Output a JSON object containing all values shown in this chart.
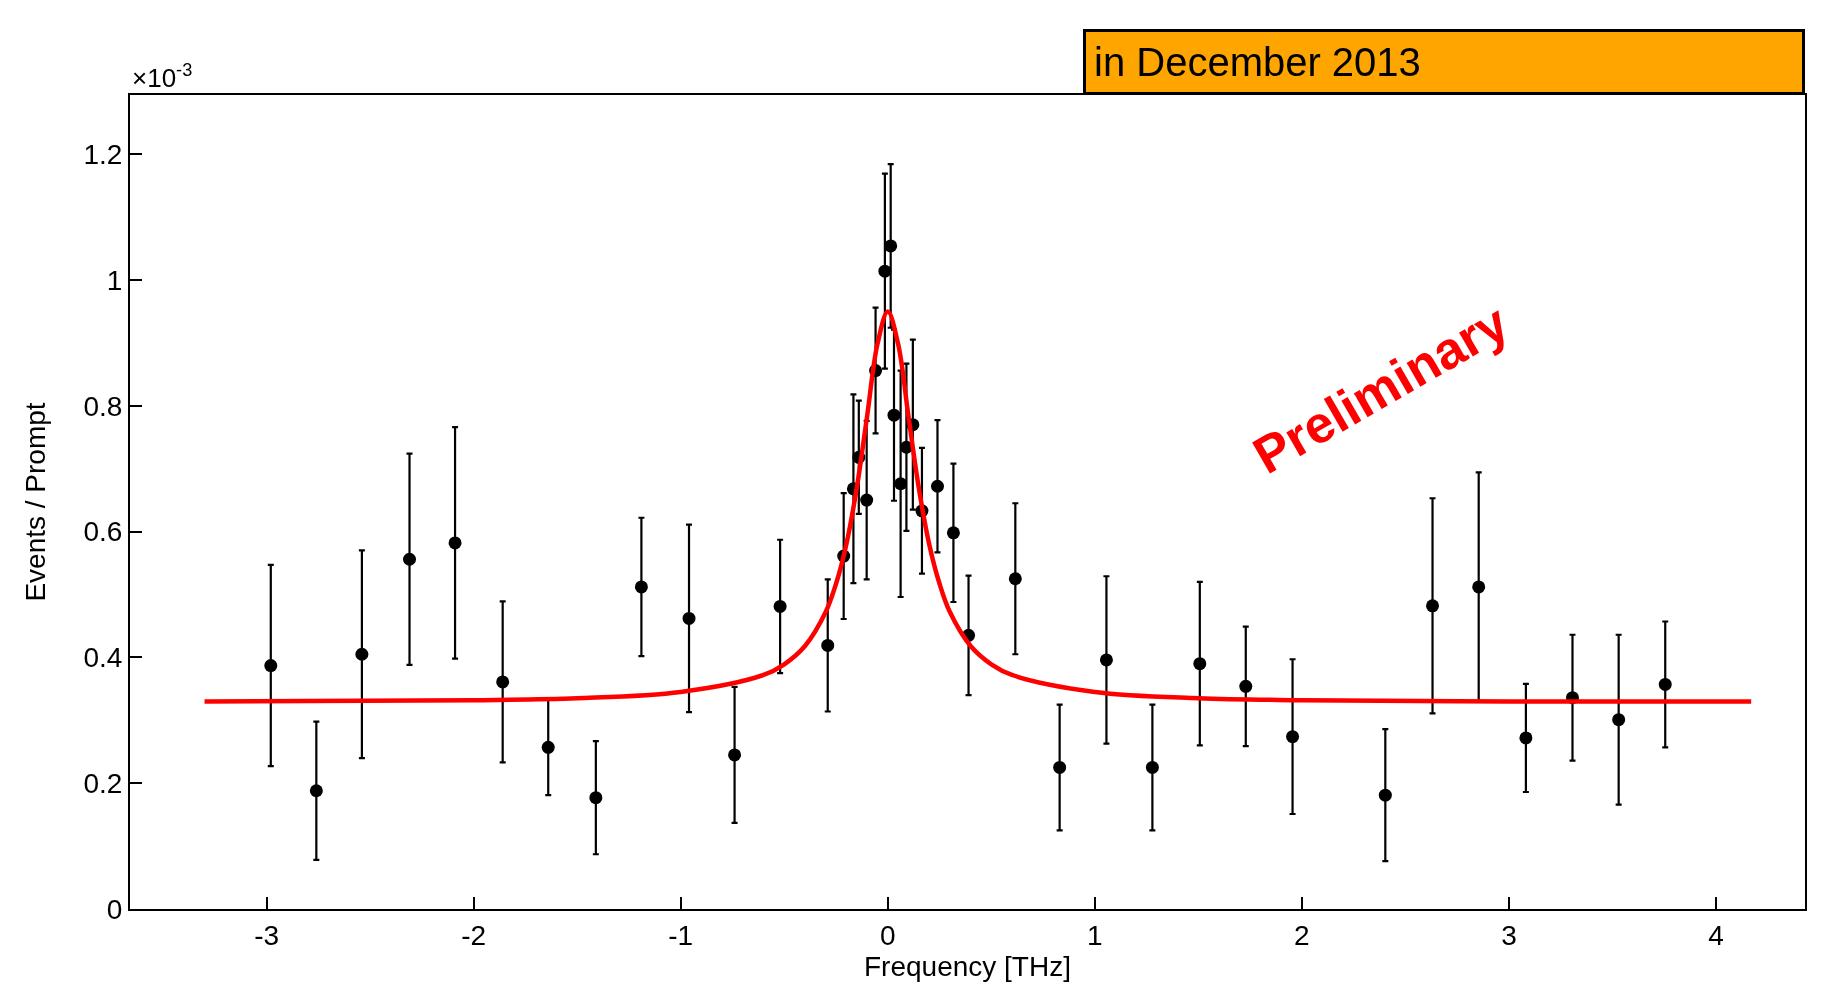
{
  "chart_data": {
    "type": "scatter",
    "xlabel": "Frequency [THz]",
    "ylabel": "Events / Prompt",
    "annotations": [
      "×10$^{-3}$",
      "in December 2013",
      "Preliminary"
    ],
    "xlim": [
      -3.66,
      4.43
    ],
    "ylim": [
      0,
      1.294
    ],
    "xticks": [
      -3,
      -2,
      -1,
      0,
      1,
      2,
      3,
      4
    ],
    "yticks": [
      0,
      0.2,
      0.4,
      0.6,
      0.8,
      1,
      1.2
    ],
    "marker": "circle",
    "series": [
      {
        "color": "#000000",
        "x": [
          -2.98,
          -2.76,
          -2.54,
          -2.31,
          -2.09,
          -1.86,
          -1.64,
          -1.41,
          -1.19,
          -0.96,
          -0.74,
          -0.52,
          -0.29,
          -0.213,
          -0.166,
          -0.14,
          -0.102,
          -0.059,
          -0.014,
          0.014,
          0.03,
          0.062,
          0.09,
          0.121,
          0.165,
          0.24,
          0.317,
          0.39,
          0.616,
          0.83,
          1.056,
          1.278,
          1.507,
          1.729,
          1.955,
          2.403,
          2.631,
          2.854,
          3.082,
          3.307,
          3.53,
          3.755
        ],
        "values": [
          0.387,
          0.188,
          0.405,
          0.556,
          0.582,
          0.361,
          0.257,
          0.177,
          0.512,
          0.462,
          0.245,
          0.481,
          0.419,
          0.561,
          0.668,
          0.718,
          0.65,
          0.856,
          1.014,
          1.054,
          0.785,
          0.676,
          0.734,
          0.77,
          0.633,
          0.672,
          0.598,
          0.435,
          0.525,
          0.225,
          0.396,
          0.225,
          0.39,
          0.354,
          0.274,
          0.181,
          0.482,
          0.512,
          0.272,
          0.336,
          0.301,
          0.357
        ],
        "errors": [
          0.16,
          0.11,
          0.165,
          0.168,
          0.184,
          0.128,
          0.076,
          0.09,
          0.11,
          0.149,
          0.108,
          0.106,
          0.105,
          0.1,
          0.15,
          0.09,
          0.126,
          0.1,
          0.155,
          0.13,
          0.136,
          0.18,
          0.133,
          0.135,
          0.1,
          0.105,
          0.11,
          0.095,
          0.12,
          0.1,
          0.133,
          0.1,
          0.13,
          0.095,
          0.123,
          0.105,
          0.171,
          0.182,
          0.086,
          0.1,
          0.135,
          0.1
        ]
      },
      {
        "type": "line",
        "color": "#ff0000",
        "marker": "none",
        "line_style": "solid",
        "x": [
          -3.3,
          -2,
          -1.5,
          -1,
          -0.6,
          -0.5,
          -0.4,
          -0.3,
          -0.25,
          -0.2,
          -0.15,
          -0.1,
          -0.05,
          0,
          0.05,
          0.1,
          0.15,
          0.2,
          0.25,
          0.3,
          0.4,
          0.5,
          0.6,
          1,
          1.5,
          2,
          3,
          4.17
        ],
        "values": [
          0.33,
          0.332,
          0.335,
          0.345,
          0.372,
          0.389,
          0.418,
          0.472,
          0.517,
          0.58,
          0.669,
          0.783,
          0.898,
          0.95,
          0.898,
          0.783,
          0.669,
          0.58,
          0.517,
          0.472,
          0.418,
          0.389,
          0.372,
          0.345,
          0.335,
          0.332,
          0.33,
          0.33
        ]
      }
    ]
  }
}
